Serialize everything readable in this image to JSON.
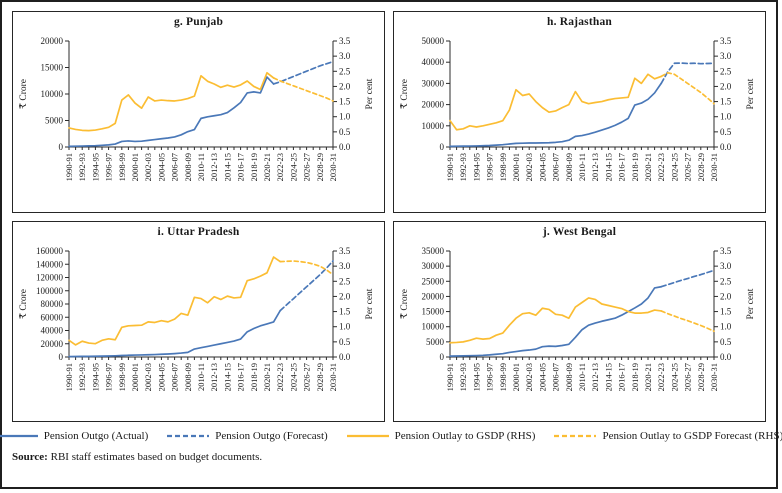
{
  "source": {
    "label": "Source:",
    "text": " RBI staff estimates based on budget documents."
  },
  "legend": {
    "items": [
      {
        "label": "Pension Outgo (Actual)",
        "color": "#4A78B8",
        "dashed": false
      },
      {
        "label": "Pension Outgo (Forecast)",
        "color": "#4A78B8",
        "dashed": true
      },
      {
        "label": "Pension Outlay to GSDP (RHS)",
        "color": "#FBBD33",
        "dashed": false
      },
      {
        "label": "Pension Outlay to GSDP Forecast (RHS)",
        "color": "#FBBD33",
        "dashed": true
      }
    ]
  },
  "chart_data": {
    "type": "line",
    "x_categories": [
      "1990-91",
      "1991-92",
      "1992-93",
      "1993-94",
      "1994-95",
      "1995-96",
      "1996-97",
      "1997-98",
      "1998-99",
      "1999-00",
      "2000-01",
      "2001-02",
      "2002-03",
      "2003-04",
      "2004-05",
      "2005-06",
      "2006-07",
      "2007-08",
      "2008-09",
      "2009-10",
      "2010-11",
      "2011-12",
      "2012-13",
      "2013-14",
      "2014-15",
      "2015-16",
      "2016-17",
      "2017-18",
      "2018-19",
      "2019-20",
      "2020-21",
      "2021-22",
      "2022-23",
      "2023-24",
      "2024-25",
      "2025-26",
      "2026-27",
      "2027-28",
      "2028-29",
      "2029-30",
      "2030-31"
    ],
    "x_tick_label_every": 2,
    "grid": false,
    "right_axis": {
      "label": "Per cent",
      "min": 0,
      "max": 3.5,
      "step": 0.5
    },
    "series_styles": [
      {
        "key": "outgo_actual",
        "axis": "left",
        "color": "#4A78B8",
        "dash": ""
      },
      {
        "key": "outgo_forecast",
        "axis": "left",
        "color": "#4A78B8",
        "dash": "5 3"
      },
      {
        "key": "outlay_actual",
        "axis": "right",
        "color": "#FBBD33",
        "dash": ""
      },
      {
        "key": "outlay_forecast",
        "axis": "right",
        "color": "#FBBD33",
        "dash": "4 3"
      }
    ],
    "charts": [
      {
        "title": "g. Punjab",
        "left_axis": {
          "label": "₹ Crore",
          "min": 0,
          "max": 20000,
          "step": 5000
        },
        "series": {
          "outgo_actual": {
            "start": 0,
            "values": [
              120,
              150,
              180,
              210,
              250,
              320,
              400,
              550,
              1050,
              1150,
              1050,
              1100,
              1250,
              1400,
              1550,
              1700,
              1900,
              2300,
              2900,
              3300,
              5400,
              5700,
              5900,
              6100,
              6500,
              7400,
              8400,
              10200,
              10400,
              10200,
              13200,
              11900
            ]
          },
          "outgo_forecast": {
            "start": 31,
            "values": [
              11900,
              12300,
              12800,
              13300,
              13800,
              14300,
              14800,
              15300,
              15700,
              16100
            ]
          },
          "outlay_actual": {
            "start": 0,
            "values": [
              0.63,
              0.58,
              0.55,
              0.54,
              0.56,
              0.6,
              0.65,
              0.78,
              1.55,
              1.72,
              1.45,
              1.28,
              1.65,
              1.52,
              1.55,
              1.53,
              1.52,
              1.55,
              1.6,
              1.68,
              2.35,
              2.17,
              2.08,
              1.97,
              2.04,
              1.98,
              2.05,
              2.18,
              2.0,
              1.9,
              2.45,
              2.28
            ]
          },
          "outlay_forecast": {
            "start": 31,
            "values": [
              2.28,
              2.18,
              2.1,
              2.02,
              1.94,
              1.86,
              1.78,
              1.7,
              1.62,
              1.52
            ]
          }
        }
      },
      {
        "title": "h. Rajasthan",
        "left_axis": {
          "label": "₹ Crore",
          "min": 0,
          "max": 50000,
          "step": 10000
        },
        "series": {
          "outgo_actual": {
            "start": 0,
            "values": [
              300,
              350,
              400,
              450,
              500,
              600,
              700,
              900,
              1100,
              1400,
              1700,
              1800,
              1900,
              1900,
              1950,
              2000,
              2200,
              2500,
              3200,
              5000,
              5400,
              6100,
              7000,
              8000,
              9000,
              10200,
              11700,
              13500,
              19800,
              20700,
              22500,
              25500,
              30000
            ]
          },
          "outgo_forecast": {
            "start": 32,
            "values": [
              30000,
              35500,
              39500,
              39600,
              39400,
              39500,
              39300,
              39400,
              39500
            ]
          },
          "outlay_actual": {
            "start": 0,
            "values": [
              0.87,
              0.57,
              0.6,
              0.7,
              0.66,
              0.7,
              0.75,
              0.8,
              0.87,
              1.22,
              1.89,
              1.7,
              1.75,
              1.5,
              1.3,
              1.15,
              1.19,
              1.3,
              1.4,
              1.83,
              1.5,
              1.43,
              1.47,
              1.5,
              1.56,
              1.6,
              1.62,
              1.64,
              2.27,
              2.1,
              2.4,
              2.25,
              2.33
            ]
          },
          "outlay_forecast": {
            "start": 32,
            "values": [
              2.33,
              2.45,
              2.4,
              2.25,
              2.1,
              1.95,
              1.8,
              1.62,
              1.43
            ]
          }
        }
      },
      {
        "title": "i. Uttar Pradesh",
        "left_axis": {
          "label": "₹ Crore",
          "min": 0,
          "max": 160000,
          "step": 20000
        },
        "series": {
          "outgo_actual": {
            "start": 0,
            "values": [
              700,
              800,
              900,
              1000,
              1100,
              1300,
              1500,
              1800,
              2300,
              2600,
              2900,
              3100,
              3400,
              3700,
              4100,
              4500,
              5100,
              5900,
              7000,
              12000,
              14000,
              16000,
              18000,
              20000,
              22000,
              24000,
              27000,
              38000,
              43000,
              47000,
              50000,
              53000,
              70000
            ]
          },
          "outgo_forecast": {
            "start": 32,
            "values": [
              70000,
              79000,
              88000,
              97000,
              106000,
              115000,
              124000,
              134000,
              145000
            ]
          },
          "outlay_actual": {
            "start": 0,
            "values": [
              0.55,
              0.4,
              0.52,
              0.46,
              0.44,
              0.55,
              0.6,
              0.57,
              0.98,
              1.03,
              1.04,
              1.05,
              1.16,
              1.14,
              1.2,
              1.16,
              1.25,
              1.44,
              1.38,
              1.97,
              1.93,
              1.79,
              1.99,
              1.9,
              2.01,
              1.95,
              1.97,
              2.52,
              2.58,
              2.67,
              2.78,
              3.3,
              3.15
            ]
          },
          "outlay_forecast": {
            "start": 32,
            "values": [
              3.15,
              3.16,
              3.17,
              3.15,
              3.12,
              3.07,
              3.0,
              2.88,
              2.72
            ]
          }
        }
      },
      {
        "title": "j. West Bengal",
        "left_axis": {
          "label": "₹ Crore",
          "min": 0,
          "max": 35000,
          "step": 5000
        },
        "series": {
          "outgo_actual": {
            "start": 0,
            "values": [
              300,
              330,
              380,
              430,
              480,
              560,
              700,
              900,
              1100,
              1500,
              1800,
              2100,
              2300,
              2600,
              3400,
              3600,
              3500,
              3800,
              4200,
              6500,
              9000,
              10500,
              11200,
              11800,
              12300,
              12800,
              13800,
              15000,
              16200,
              17500,
              19500,
              22800,
              23200
            ]
          },
          "outgo_forecast": {
            "start": 32,
            "values": [
              23200,
              23900,
              24600,
              25300,
              25900,
              26600,
              27200,
              27900,
              28600
            ]
          },
          "outlay_actual": {
            "start": 0,
            "values": [
              0.47,
              0.48,
              0.5,
              0.55,
              0.62,
              0.59,
              0.61,
              0.72,
              0.79,
              1.05,
              1.28,
              1.43,
              1.46,
              1.38,
              1.61,
              1.57,
              1.41,
              1.38,
              1.28,
              1.65,
              1.8,
              1.95,
              1.9,
              1.75,
              1.7,
              1.65,
              1.6,
              1.5,
              1.45,
              1.45,
              1.47,
              1.55,
              1.52
            ]
          },
          "outlay_forecast": {
            "start": 32,
            "values": [
              1.52,
              1.43,
              1.35,
              1.27,
              1.2,
              1.12,
              1.04,
              0.95,
              0.85
            ]
          }
        }
      }
    ]
  }
}
